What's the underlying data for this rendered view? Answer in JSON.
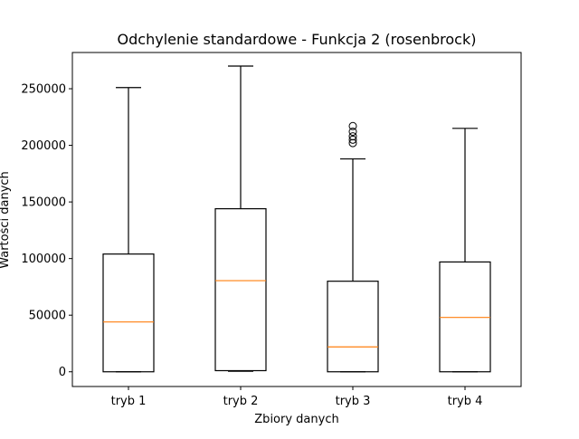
{
  "chart_data": {
    "type": "boxplot",
    "title": "Odchylenie standardowe - Funkcja 2 (rosenbrock)",
    "xlabel": "Zbiory danych",
    "ylabel": "Wartości danych",
    "categories": [
      "tryb 1",
      "tryb 2",
      "tryb 3",
      "tryb 4"
    ],
    "ylim": [
      -13000,
      282000
    ],
    "yticks": [
      0,
      50000,
      100000,
      150000,
      200000,
      250000
    ],
    "ytick_labels": [
      "0",
      "50000",
      "100000",
      "150000",
      "200000",
      "250000"
    ],
    "boxes": [
      {
        "label": "tryb 1",
        "whisker_low": 0,
        "q1": 0,
        "median": 44000,
        "q3": 104000,
        "whisker_high": 251000,
        "fliers": []
      },
      {
        "label": "tryb 2",
        "whisker_low": 500,
        "q1": 1000,
        "median": 80500,
        "q3": 144000,
        "whisker_high": 270000,
        "fliers": []
      },
      {
        "label": "tryb 3",
        "whisker_low": 0,
        "q1": 0,
        "median": 22000,
        "q3": 80000,
        "whisker_high": 188000,
        "fliers": [
          202000,
          205000,
          208000,
          212000,
          217000
        ]
      },
      {
        "label": "tryb 4",
        "whisker_low": 0,
        "q1": 0,
        "median": 48000,
        "q3": 97000,
        "whisker_high": 215000,
        "fliers": []
      }
    ],
    "grid": false,
    "colors": {
      "box": "#000000",
      "median": "#ff7f0e",
      "flier": "#000000"
    }
  }
}
